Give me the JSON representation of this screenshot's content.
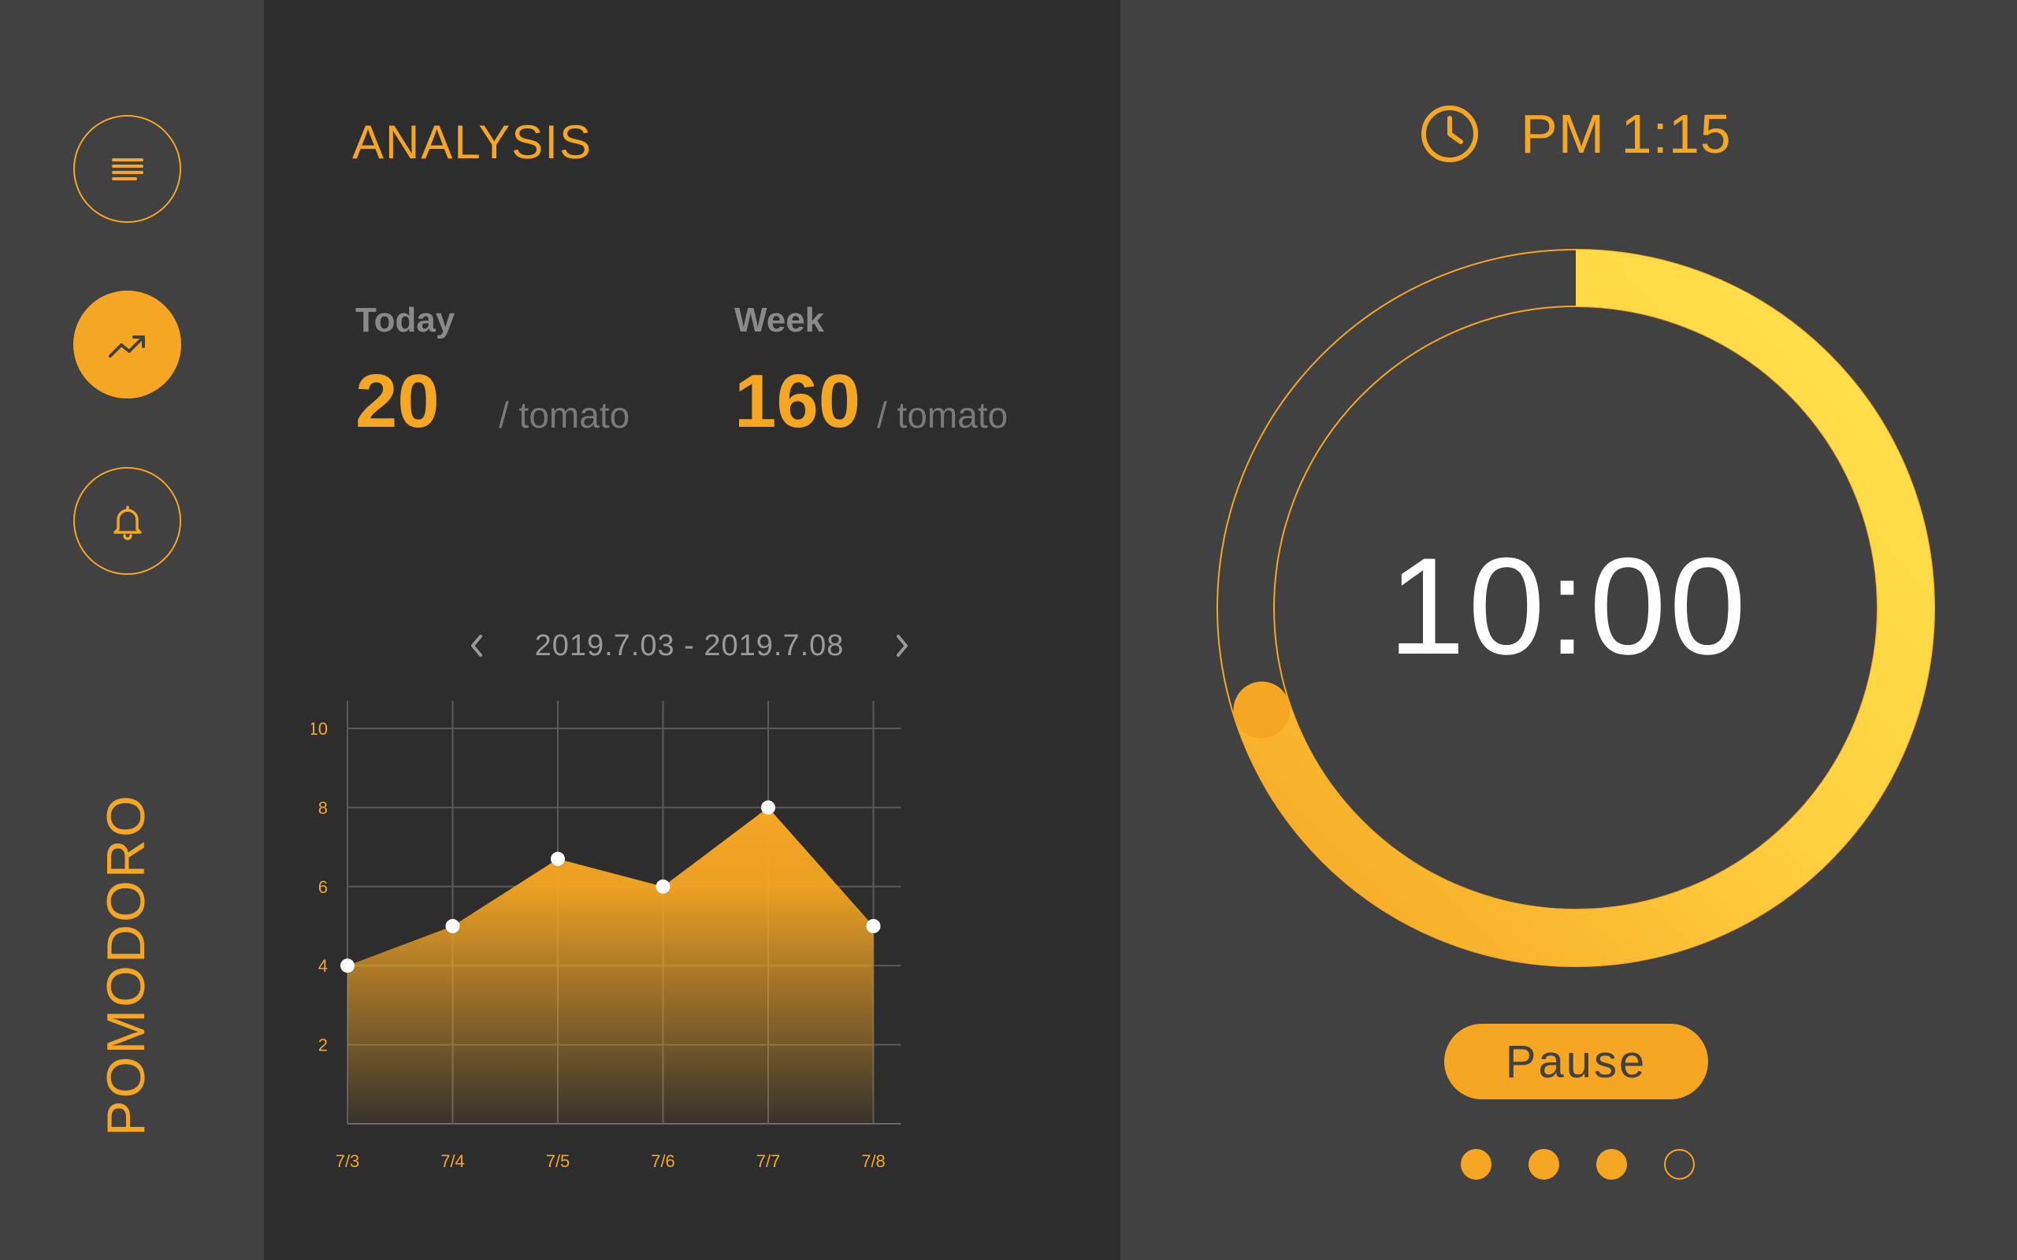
{
  "colors": {
    "accent": "#F5A623",
    "accent_light": "#FFE34D",
    "panel_dark": "#2D2D2D",
    "panel_mid": "#414141",
    "text_muted": "#8A8A8A",
    "white": "#FFFFFF"
  },
  "sidebar": {
    "brand": "POMODORO",
    "items": [
      {
        "icon": "menu-icon",
        "active": false
      },
      {
        "icon": "trending-up-icon",
        "active": true
      },
      {
        "icon": "bell-icon",
        "active": false
      }
    ]
  },
  "analysis": {
    "title": "ANALYSIS",
    "today": {
      "label": "Today",
      "value": "20",
      "unit": "/ tomato"
    },
    "week": {
      "label": "Week",
      "value": "160",
      "unit": "/ tomato"
    },
    "range": {
      "text": "2019.7.03 - 2019.7.08",
      "prev_icon": "chevron-left-icon",
      "next_icon": "chevron-right-icon"
    }
  },
  "chart_data": {
    "type": "area",
    "categories": [
      "7/3",
      "7/4",
      "7/5",
      "7/6",
      "7/7",
      "7/8"
    ],
    "values": [
      4,
      5,
      6.7,
      6,
      8,
      5
    ],
    "ylim": [
      0,
      10
    ],
    "yticks": [
      2,
      4,
      6,
      8,
      10
    ],
    "grid": true,
    "title": "",
    "xlabel": "",
    "ylabel": ""
  },
  "timer": {
    "clock_icon": "clock-icon",
    "clock": "PM 1:15",
    "remaining": "10:00",
    "progress": 0.7,
    "pause_label": "Pause",
    "sessions": [
      true,
      true,
      true,
      false
    ]
  }
}
